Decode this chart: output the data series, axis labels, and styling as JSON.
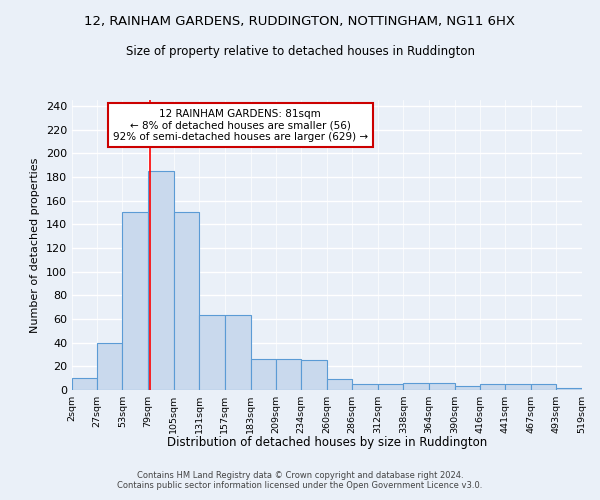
{
  "title": "12, RAINHAM GARDENS, RUDDINGTON, NOTTINGHAM, NG11 6HX",
  "subtitle": "Size of property relative to detached houses in Ruddington",
  "xlabel": "Distribution of detached houses by size in Ruddington",
  "ylabel": "Number of detached properties",
  "bin_edges": [
    2,
    27,
    53,
    79,
    105,
    131,
    157,
    183,
    209,
    234,
    260,
    286,
    312,
    338,
    364,
    390,
    416,
    441,
    467,
    493,
    519
  ],
  "bar_heights": [
    10,
    40,
    150,
    185,
    150,
    63,
    63,
    26,
    26,
    25,
    9,
    5,
    5,
    6,
    6,
    3,
    5,
    5,
    5,
    2
  ],
  "tick_labels": [
    "2sqm",
    "27sqm",
    "53sqm",
    "79sqm",
    "105sqm",
    "131sqm",
    "157sqm",
    "183sqm",
    "209sqm",
    "234sqm",
    "260sqm",
    "286sqm",
    "312sqm",
    "338sqm",
    "364sqm",
    "390sqm",
    "416sqm",
    "441sqm",
    "467sqm",
    "493sqm",
    "519sqm"
  ],
  "bar_color": "#c9d9ed",
  "bar_edge_color": "#5b9bd5",
  "red_line_x": 81,
  "annotation_text": "12 RAINHAM GARDENS: 81sqm\n← 8% of detached houses are smaller (56)\n92% of semi-detached houses are larger (629) →",
  "annotation_box_color": "#ffffff",
  "annotation_box_edge_color": "#cc0000",
  "footer": "Contains HM Land Registry data © Crown copyright and database right 2024.\nContains public sector information licensed under the Open Government Licence v3.0.",
  "bg_color": "#eaf0f8",
  "ylim": [
    0,
    245
  ],
  "yticks": [
    0,
    20,
    40,
    60,
    80,
    100,
    120,
    140,
    160,
    180,
    200,
    220,
    240
  ]
}
